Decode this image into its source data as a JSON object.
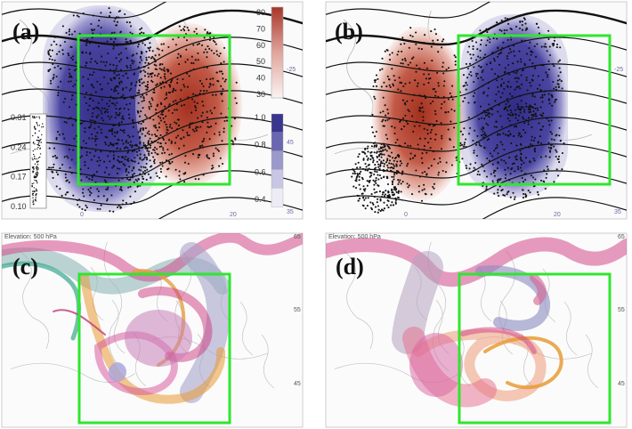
{
  "panels": [
    {
      "id": "a",
      "label": "(a)",
      "bottom_left": "0",
      "bottom_right": "20",
      "right_tick_top": "-25",
      "right_tick_bottom": "35",
      "right_tick_mid": "45"
    },
    {
      "id": "b",
      "label": "(b)",
      "bottom_left": "0",
      "bottom_right": "20",
      "right_tick_top": "-25",
      "right_tick_bottom": "35",
      "right_tick_mid": ""
    },
    {
      "id": "c",
      "label": "(c)",
      "elevation": "Elevation: 500 hPa",
      "lat_top": "65",
      "lat_mid": "55",
      "lat_bot": "45"
    },
    {
      "id": "d",
      "label": "(d)",
      "elevation": "Elevation: 500 hPa",
      "lat_top": "65",
      "lat_mid": "55",
      "lat_bot": "45"
    }
  ],
  "red_colorbar": {
    "ticks": [
      "80",
      "70",
      "60",
      "50",
      "40",
      "30"
    ],
    "colors": [
      "#a8352a",
      "#c9685c",
      "#dfa59d",
      "#f1d7d3",
      "#fbf3f2"
    ]
  },
  "blue_colorbar": {
    "ticks": [
      "1.0",
      "0.8",
      "0.6",
      "0.4"
    ],
    "colors": [
      "#3a358e",
      "#6a66b0",
      "#9b98cc",
      "#c8c6e4",
      "#edecf6"
    ]
  },
  "density_scale": {
    "ticks": [
      "0.31",
      "0.24",
      "0.17",
      "0.10"
    ]
  },
  "colors": {
    "highlight_box": "#2fe62f",
    "red": "#b03a2a",
    "blue": "#3a358e"
  }
}
